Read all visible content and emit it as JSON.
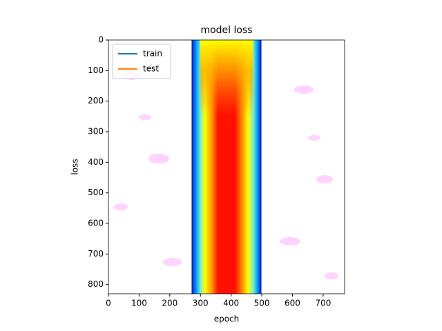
{
  "chart_data": {
    "type": "image",
    "title": "model loss",
    "x_label": "epoch",
    "y_label": "loss",
    "xlim": [
      0,
      770
    ],
    "ylim": [
      830,
      0
    ],
    "xticks": [
      0,
      100,
      200,
      300,
      400,
      500,
      600,
      700
    ],
    "yticks": [
      0,
      100,
      200,
      300,
      400,
      500,
      600,
      700,
      800
    ],
    "legend": "upper left",
    "series": [
      {
        "name": "train",
        "color": "#1f77b4"
      },
      {
        "name": "test",
        "color": "#ff7f0e"
      }
    ]
  }
}
